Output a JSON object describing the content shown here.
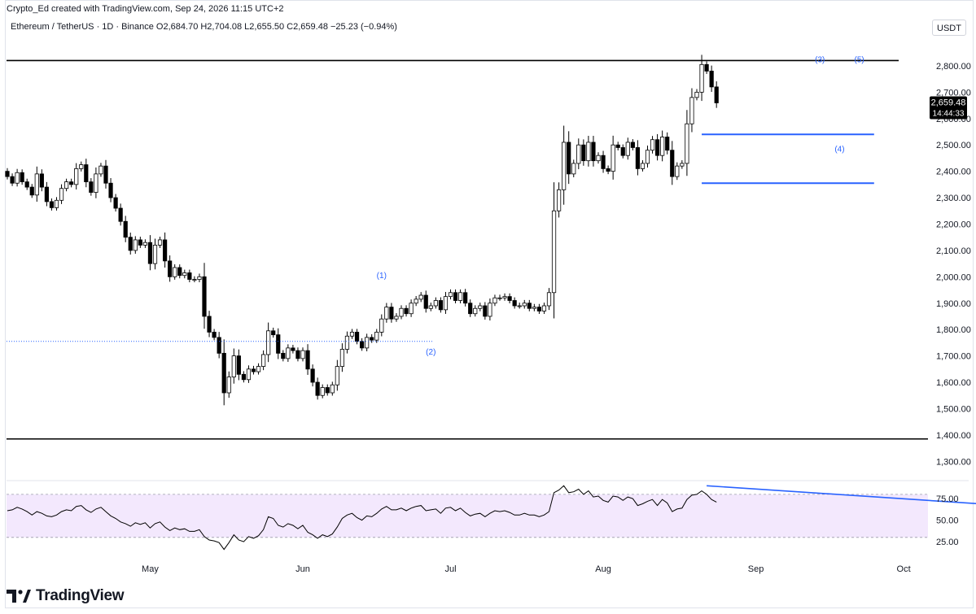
{
  "header": {
    "credit": "Crypto_Ed created with TradingView.com, Sep 24, 2026 11:15 UTC+2",
    "symbol_line": "Ethereum / TetherUS · 1D · Binance  O2,684.70  H2,704.08  L2,655.50  C2,659.48  −25.23 (−0.94%)",
    "currency": "USDT"
  },
  "brand": {
    "name": "TradingView",
    "logo_icon": "tradingview-logo-icon"
  },
  "colors": {
    "up": "#ffffff",
    "down": "#000000",
    "outline": "#000000",
    "trendline": "#2962ff",
    "rsi_band": "#f3e8fd",
    "rsi_line": "#000000",
    "level_line": "#000000"
  },
  "chart_data": [
    {
      "type": "candlestick",
      "title": "",
      "ylim": [
        1230,
        2880
      ],
      "y_ticks": [
        "2,800.00",
        "2,700.00",
        "2,600.00",
        "2,500.00",
        "2,400.00",
        "2,300.00",
        "2,200.00",
        "2,100.00",
        "2,000.00",
        "1,900.00",
        "1,800.00",
        "1,700.00",
        "1,600.00",
        "1,500.00",
        "1,400.00",
        "1,300.00"
      ],
      "x_ticks": [
        {
          "label": "May",
          "date": "2026-05-01"
        },
        {
          "label": "Jun",
          "date": "2026-06-01"
        },
        {
          "label": "Jul",
          "date": "2026-07-01"
        },
        {
          "label": "Aug",
          "date": "2026-08-01"
        },
        {
          "label": "Sep",
          "date": "2026-09-01"
        },
        {
          "label": "Oct",
          "date": "2026-10-01"
        }
      ],
      "first_date": "2026-04-02",
      "last_price": "2,659.48",
      "countdown": "14:44:33",
      "close": [
        2380,
        2355,
        2395,
        2360,
        2340,
        2310,
        2390,
        2340,
        2285,
        2262,
        2290,
        2335,
        2360,
        2350,
        2410,
        2425,
        2360,
        2320,
        2390,
        2420,
        2355,
        2300,
        2260,
        2210,
        2150,
        2100,
        2140,
        2120,
        2130,
        2050,
        2120,
        2140,
        2060,
        2000,
        2035,
        2005,
        2015,
        1990,
        1990,
        2000,
        1850,
        1790,
        1770,
        1710,
        1560,
        1620,
        1700,
        1630,
        1610,
        1650,
        1640,
        1660,
        1705,
        1795,
        1780,
        1710,
        1690,
        1730,
        1720,
        1690,
        1720,
        1650,
        1600,
        1550,
        1580,
        1560,
        1590,
        1660,
        1725,
        1775,
        1790,
        1755,
        1730,
        1770,
        1760,
        1790,
        1840,
        1885,
        1840,
        1850,
        1880,
        1860,
        1900,
        1915,
        1930,
        1880,
        1890,
        1910,
        1875,
        1925,
        1940,
        1910,
        1940,
        1900,
        1860,
        1880,
        1890,
        1850,
        1900,
        1920,
        1920,
        1925,
        1910,
        1890,
        1890,
        1900,
        1880,
        1885,
        1870,
        1890,
        1940,
        2250,
        2330,
        2510,
        2390,
        2430,
        2500,
        2440,
        2510,
        2440,
        2460,
        2410,
        2400,
        2500,
        2490,
        2460,
        2510,
        2490,
        2410,
        2430,
        2480,
        2520,
        2460,
        2530,
        2480,
        2380,
        2420,
        2430,
        2580,
        2680,
        2700,
        2805,
        2780,
        2720,
        2659.48
      ],
      "wave_labels": [
        {
          "label": "(1)",
          "date": "2026-06-17"
        },
        {
          "label": "(2)",
          "date": "2026-06-27"
        },
        {
          "label": "(3)",
          "date": "2026-09-14"
        },
        {
          "label": "(4)",
          "date": "2026-09-18"
        },
        {
          "label": "(5)",
          "date": "2026-09-22"
        }
      ],
      "levels": [
        2820,
        1385
      ],
      "dotted_level": 1755,
      "box": {
        "top": 2540,
        "bottom": 2355,
        "from": "2026-08-21",
        "to": "2026-09-25"
      }
    },
    {
      "type": "line",
      "name": "",
      "ylim": [
        10,
        95
      ],
      "y_ticks": [
        "75.00",
        "50.00",
        "25.00"
      ],
      "band": [
        30,
        80
      ],
      "values": [
        61,
        62,
        65,
        63,
        60,
        56,
        60,
        58,
        55,
        54,
        56,
        60,
        62,
        61,
        66,
        67,
        62,
        59,
        63,
        65,
        60,
        55,
        52,
        48,
        46,
        43,
        47,
        45,
        47,
        41,
        46,
        48,
        42,
        38,
        41,
        39,
        40,
        37,
        37,
        39,
        31,
        27,
        26,
        24,
        16,
        24,
        33,
        27,
        25,
        31,
        29,
        32,
        39,
        54,
        52,
        44,
        42,
        46,
        44,
        40,
        44,
        36,
        33,
        29,
        33,
        31,
        34,
        42,
        52,
        56,
        58,
        53,
        50,
        55,
        54,
        58,
        63,
        66,
        62,
        62,
        64,
        61,
        64,
        66,
        67,
        61,
        62,
        63,
        58,
        64,
        65,
        61,
        64,
        59,
        55,
        57,
        58,
        54,
        58,
        61,
        60,
        61,
        59,
        56,
        56,
        58,
        56,
        56,
        54,
        56,
        60,
        82,
        85,
        90,
        82,
        83,
        86,
        80,
        84,
        77,
        78,
        73,
        71,
        78,
        77,
        73,
        77,
        75,
        67,
        69,
        72,
        74,
        67,
        74,
        70,
        60,
        63,
        64,
        74,
        79,
        80,
        84,
        80,
        74,
        71
      ],
      "trendline": {
        "from_date": "2026-08-22",
        "from_value": 90,
        "to_date": "2026-10-27",
        "to_value": 65
      }
    }
  ]
}
